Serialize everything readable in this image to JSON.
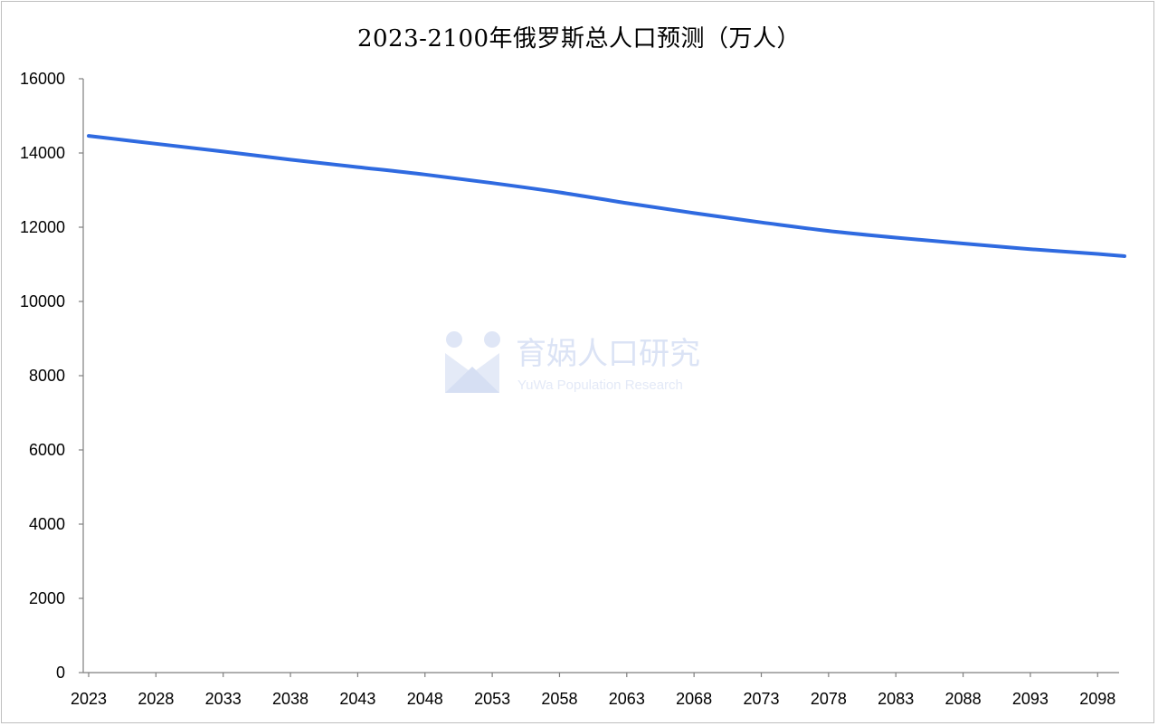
{
  "chart_data": {
    "type": "line",
    "title": "2023-2100年俄罗斯总人口预测（万人）",
    "xlabel": "",
    "ylabel": "",
    "x_ticks": [
      "2023",
      "2028",
      "2033",
      "2038",
      "2043",
      "2048",
      "2053",
      "2058",
      "2063",
      "2068",
      "2073",
      "2078",
      "2083",
      "2088",
      "2093",
      "2098"
    ],
    "y_ticks": [
      0,
      2000,
      4000,
      6000,
      8000,
      10000,
      12000,
      14000,
      16000
    ],
    "ylim": [
      0,
      16000
    ],
    "xlim": [
      2023,
      2100
    ],
    "grid": false,
    "legend": "none",
    "series": [
      {
        "color": "#2f6ae0",
        "x": [
          2023,
          2028,
          2033,
          2038,
          2043,
          2048,
          2053,
          2058,
          2063,
          2068,
          2073,
          2078,
          2083,
          2088,
          2093,
          2098,
          2100
        ],
        "values": [
          14460,
          14250,
          14040,
          13820,
          13620,
          13420,
          13190,
          12940,
          12650,
          12380,
          12130,
          11900,
          11720,
          11560,
          11410,
          11280,
          11220
        ]
      }
    ]
  },
  "watermark": {
    "text": "育娲人口研究",
    "subtext": "YuWa Population Research"
  }
}
